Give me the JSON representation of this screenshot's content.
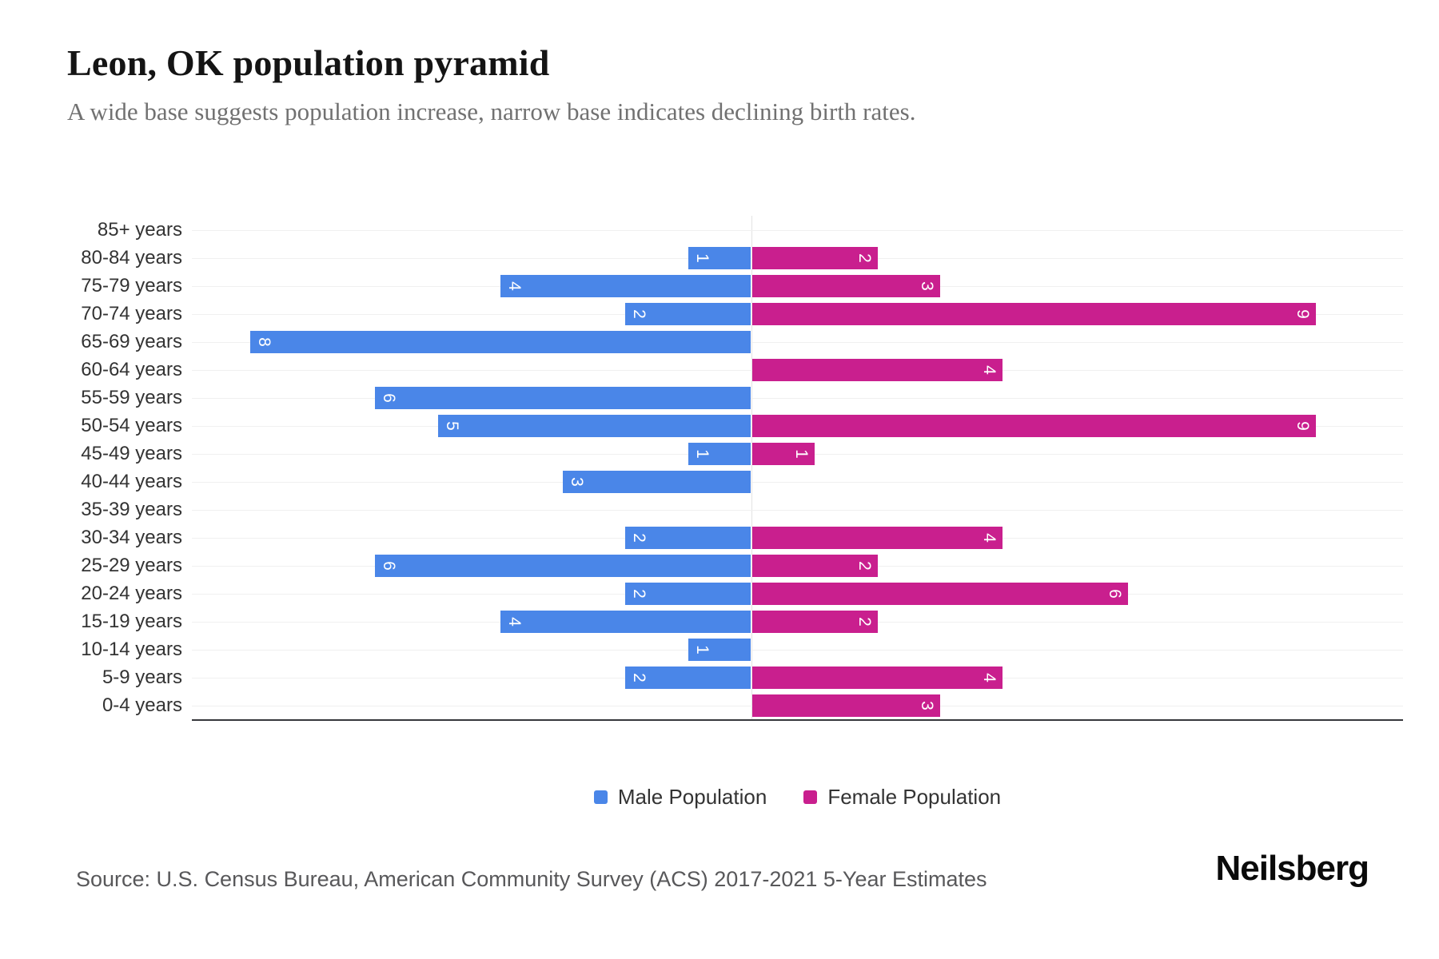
{
  "header": {
    "title": "Leon, OK population pyramid",
    "subtitle": "A wide base suggests population increase, narrow base indicates declining birth rates."
  },
  "chart_data": {
    "type": "bar",
    "subtype": "population-pyramid-horizontal",
    "title": "Leon, OK population pyramid",
    "categories": [
      "85+ years",
      "80-84 years",
      "75-79 years",
      "70-74 years",
      "65-69 years",
      "60-64 years",
      "55-59 years",
      "50-54 years",
      "45-49 years",
      "40-44 years",
      "35-39 years",
      "30-34 years",
      "25-29 years",
      "20-24 years",
      "15-19 years",
      "10-14 years",
      "5-9 years",
      "0-4 years"
    ],
    "series": [
      {
        "name": "Male Population",
        "side": "left",
        "color": "#4a86e8",
        "values": [
          0,
          1,
          4,
          2,
          8,
          0,
          6,
          5,
          1,
          3,
          0,
          2,
          6,
          2,
          4,
          1,
          2,
          0
        ]
      },
      {
        "name": "Female Population",
        "side": "right",
        "color": "#c91f8e",
        "values": [
          0,
          2,
          3,
          9,
          0,
          4,
          0,
          9,
          1,
          0,
          0,
          4,
          2,
          6,
          2,
          0,
          4,
          3
        ]
      }
    ],
    "value_labels": "shown inside bar ends, rotated 90deg, white",
    "axis": {
      "x_ticks_visible": false,
      "left_max": 8.9,
      "right_max": 10.4,
      "grid": "horizontal per row + center vertical line"
    },
    "legend_position": "bottom-center"
  },
  "legend": {
    "male_label": "Male Population",
    "female_label": "Female Population"
  },
  "footer": {
    "source": "Source: U.S. Census Bureau, American Community Survey (ACS) 2017-2021 5-Year Estimates",
    "brand": "Neilsberg"
  }
}
